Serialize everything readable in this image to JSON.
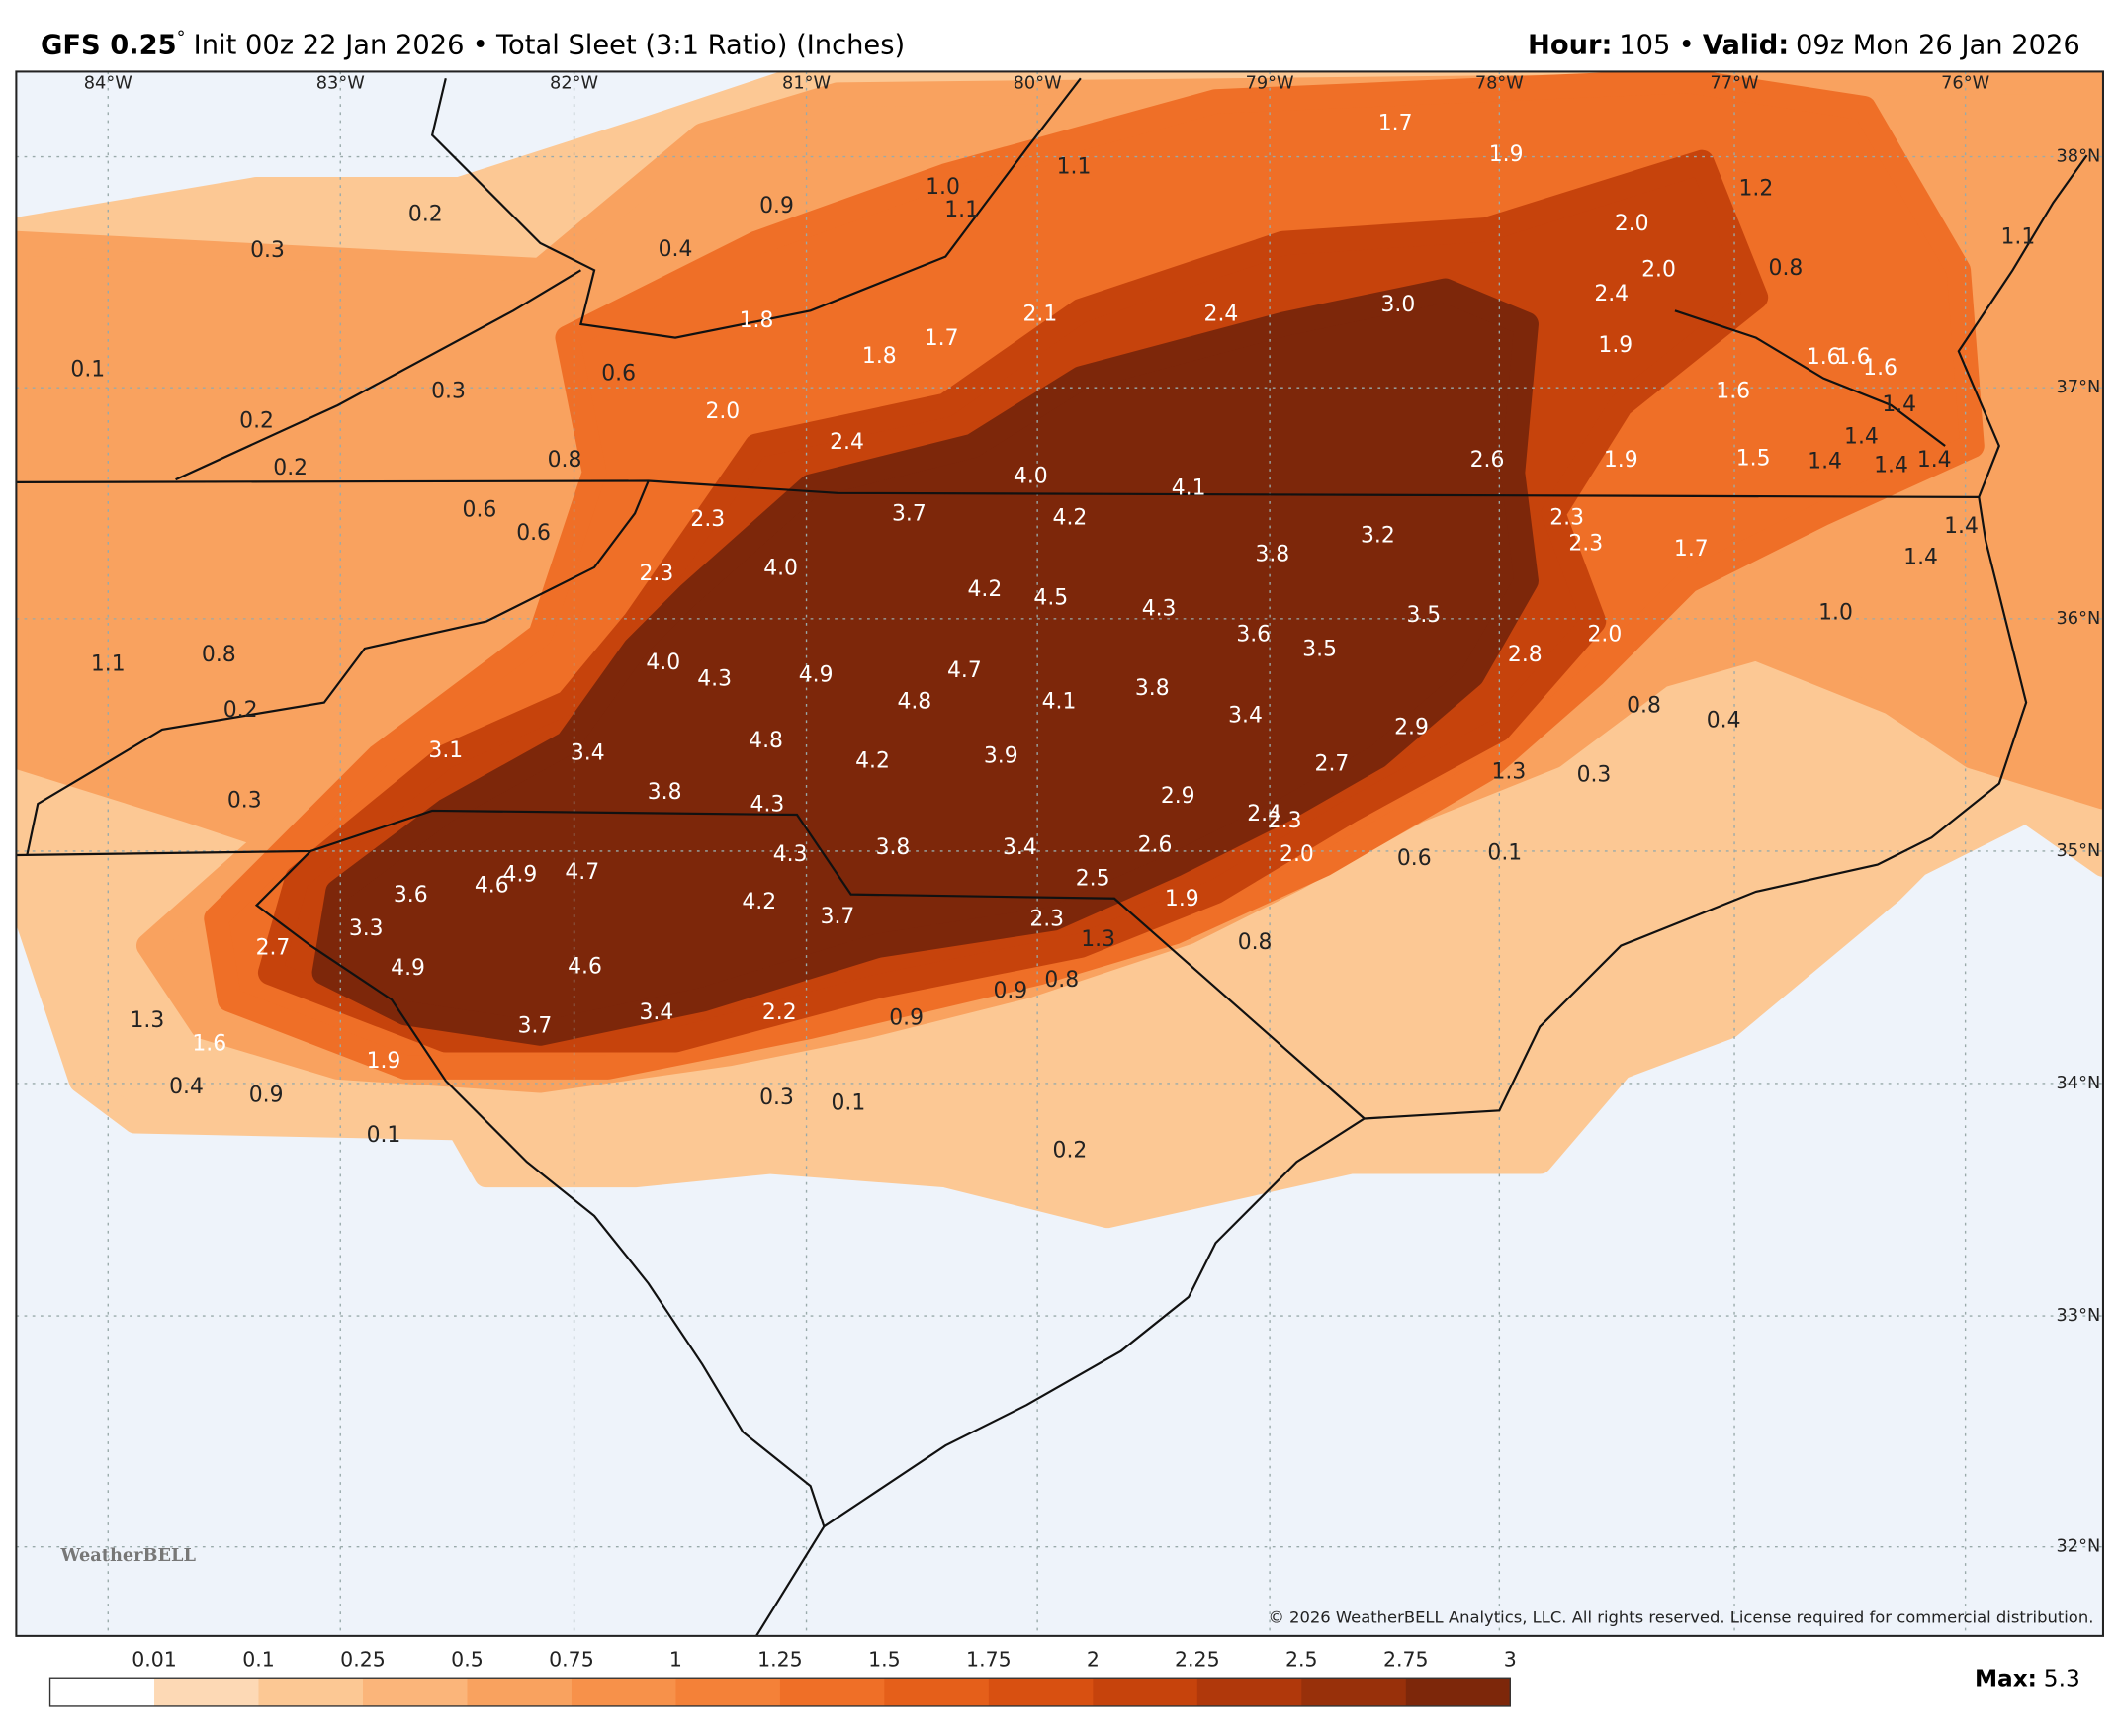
{
  "header": {
    "model": "GFS 0.25",
    "degree": "°",
    "init": "Init 00z 22 Jan 2026",
    "separator": "•",
    "product": "Total Sleet (3:1 Ratio) (Inches)",
    "hour_label": "Hour:",
    "hour": "105",
    "valid_label": "Valid:",
    "valid": "09z Mon 26 Jan 2026"
  },
  "map": {
    "longitudes": [
      "84°W",
      "83°W",
      "82°W",
      "81°W",
      "80°W",
      "79°W",
      "78°W",
      "77°W",
      "76°W"
    ],
    "latitudes": [
      "38°N",
      "37°N",
      "36°N",
      "35°N",
      "34°N",
      "33°N",
      "32°N"
    ],
    "labels": [
      "1.7",
      "1.9",
      "1.1",
      "1.0",
      "1.1",
      "0.9",
      "0.2",
      "0.3",
      "0.4",
      "2.0",
      "1.2",
      "1.1",
      "2.0",
      "2.4",
      "0.8",
      "3.0",
      "2.4",
      "2.1",
      "1.8",
      "1.7",
      "1.8",
      "1.9",
      "1.6",
      "1.6",
      "1.6",
      "0.1",
      "0.6",
      "0.3",
      "1.6",
      "1.4",
      "2.0",
      "0.2",
      "1.4",
      "2.4",
      "0.8",
      "2.6",
      "1.9",
      "1.5",
      "1.4",
      "1.4",
      "1.4",
      "0.2",
      "4.0",
      "4.1",
      "0.6",
      "3.7",
      "4.2",
      "2.3",
      "2.3",
      "1.4",
      "0.6",
      "2.3",
      "3.8",
      "3.2",
      "1.7",
      "1.4",
      "4.0",
      "2.3",
      "4.2",
      "4.5",
      "4.3",
      "1.0",
      "3.5",
      "3.6",
      "2.0",
      "3.5",
      "1.1",
      "0.8",
      "4.0",
      "2.8",
      "4.7",
      "4.3",
      "4.9",
      "4.1",
      "3.8",
      "4.8",
      "0.8",
      "0.2",
      "3.4",
      "0.4",
      "2.9",
      "4.8",
      "3.1",
      "3.4",
      "3.9",
      "4.2",
      "2.7",
      "1.3",
      "0.3",
      "3.8",
      "2.9",
      "0.3",
      "4.3",
      "2.4",
      "2.3",
      "2.6",
      "3.8",
      "3.4",
      "4.3",
      "2.0",
      "0.6",
      "0.1",
      "4.9",
      "4.7",
      "3.6",
      "4.6",
      "2.5",
      "4.2",
      "1.9",
      "3.7",
      "2.3",
      "3.3",
      "1.3",
      "0.8",
      "2.7",
      "4.9",
      "4.6",
      "0.8",
      "0.9",
      "2.2",
      "3.4",
      "0.9",
      "1.3",
      "3.7",
      "1.6",
      "1.9",
      "0.4",
      "0.9",
      "0.3",
      "0.1",
      "0.1",
      "0.2"
    ],
    "logo": "WeatherBELL",
    "copyright": "© 2026 WeatherBELL Analytics, LLC. All rights reserved. License required for commercial distribution."
  },
  "colorbar": {
    "ticks": [
      0.01,
      0.1,
      0.25,
      0.5,
      0.75,
      1,
      1.25,
      1.5,
      1.75,
      2,
      2.25,
      2.5,
      2.75,
      3
    ],
    "colors": [
      "#ffffff",
      "#fdd9b5",
      "#fcc894",
      "#fbb57a",
      "#f9a25f",
      "#f7914a",
      "#f48138",
      "#ef6f27",
      "#e55f1a",
      "#d85011",
      "#c6430c",
      "#b0380b",
      "#98300a",
      "#7d270a"
    ]
  },
  "max": {
    "label": "Max:",
    "value": "5.3"
  }
}
